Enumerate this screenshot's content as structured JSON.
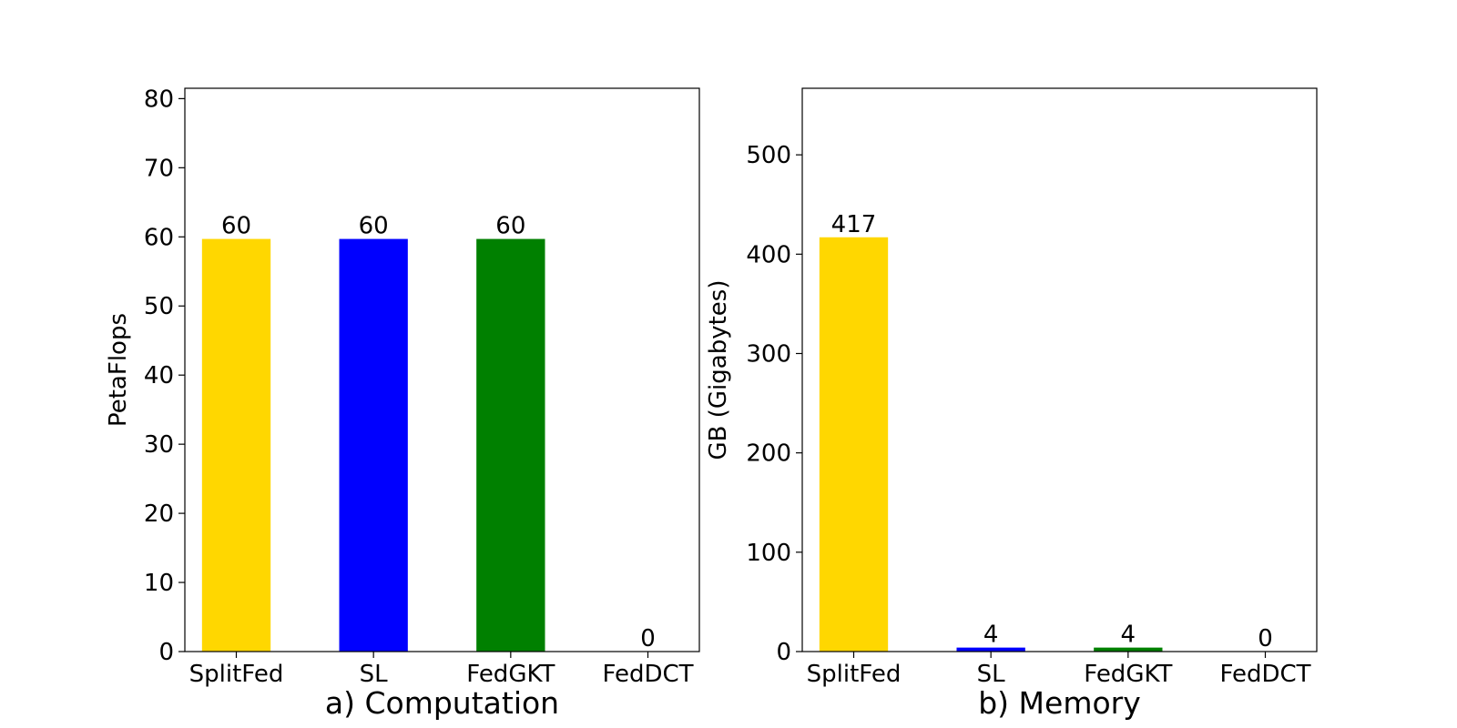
{
  "chart_data": [
    {
      "type": "bar",
      "title": "",
      "caption": "a) Computation",
      "xlabel": "",
      "ylabel": "PetaFlops",
      "categories": [
        "SplitFed",
        "SL",
        "FedGKT",
        "FedDCT"
      ],
      "values": [
        59.7,
        59.7,
        59.7,
        0
      ],
      "value_labels": [
        "60",
        "60",
        "60",
        "0"
      ],
      "colors": [
        "#FFD700",
        "#0000FF",
        "#008000",
        "#FF0000"
      ],
      "ylim": [
        0,
        81.5
      ],
      "yticks": [
        0,
        10,
        20,
        30,
        40,
        50,
        60,
        70,
        80
      ],
      "grid": false
    },
    {
      "type": "bar",
      "title": "",
      "caption": "b) Memory",
      "xlabel": "",
      "ylabel": "GB (Gigabytes)",
      "categories": [
        "SplitFed",
        "SL",
        "FedGKT",
        "FedDCT"
      ],
      "values": [
        417,
        4,
        4,
        0
      ],
      "value_labels": [
        "417",
        "4",
        "4",
        "0"
      ],
      "colors": [
        "#FFD700",
        "#0000FF",
        "#008000",
        "#FF0000"
      ],
      "ylim": [
        0,
        567
      ],
      "yticks": [
        0,
        100,
        200,
        300,
        400,
        500
      ],
      "grid": false
    }
  ]
}
